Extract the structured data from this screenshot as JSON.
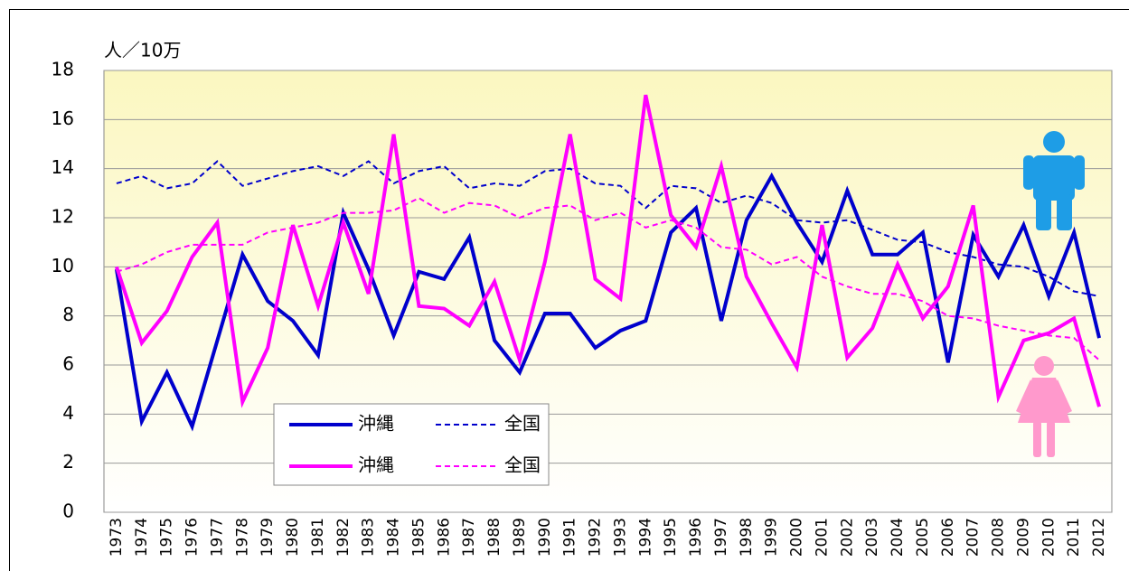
{
  "chart_data": {
    "type": "line",
    "y_label": "人／10万",
    "categories": [
      "1973",
      "1974",
      "1975",
      "1976",
      "1977",
      "1978",
      "1979",
      "1980",
      "1981",
      "1982",
      "1983",
      "1984",
      "1985",
      "1986",
      "1987",
      "1988",
      "1989",
      "1990",
      "1991",
      "1992",
      "1993",
      "1994",
      "1995",
      "1996",
      "1997",
      "1998",
      "1999",
      "2000",
      "2001",
      "2002",
      "2003",
      "2004",
      "2005",
      "2006",
      "2007",
      "2008",
      "2009",
      "2010",
      "2011",
      "2012"
    ],
    "series": [
      {
        "name": "沖縄",
        "color": "#0000cc",
        "style": "solid",
        "values": [
          9.9,
          3.7,
          5.7,
          3.5,
          7.0,
          10.5,
          8.6,
          7.8,
          6.4,
          12.2,
          9.9,
          7.2,
          9.8,
          9.5,
          11.2,
          7.0,
          5.7,
          8.1,
          8.1,
          6.7,
          7.4,
          7.8,
          11.4,
          12.4,
          7.8,
          11.9,
          13.7,
          11.8,
          10.2,
          13.1,
          10.5,
          10.5,
          11.4,
          6.1,
          11.3,
          9.6,
          11.7,
          8.8,
          11.4,
          7.1
        ]
      },
      {
        "name": "全国",
        "color": "#0000cc",
        "style": "dashed",
        "values": [
          13.4,
          13.7,
          13.2,
          13.4,
          14.3,
          13.3,
          13.6,
          13.9,
          14.1,
          13.7,
          14.3,
          13.4,
          13.9,
          14.1,
          13.2,
          13.4,
          13.3,
          13.9,
          14.0,
          13.4,
          13.3,
          12.4,
          13.3,
          13.2,
          12.6,
          12.9,
          12.6,
          11.9,
          11.8,
          11.9,
          11.5,
          11.1,
          11.0,
          10.6,
          10.4,
          10.1,
          10.0,
          9.6,
          9.0,
          8.8
        ]
      },
      {
        "name": "沖縄",
        "color": "#ff00ff",
        "style": "solid",
        "values": [
          10.0,
          6.9,
          8.2,
          10.4,
          11.8,
          4.5,
          6.7,
          11.7,
          8.4,
          11.8,
          8.9,
          15.4,
          8.4,
          8.3,
          7.6,
          9.4,
          6.2,
          10.2,
          15.4,
          9.5,
          8.7,
          17.0,
          12.1,
          10.8,
          14.1,
          9.6,
          7.7,
          5.9,
          11.7,
          6.3,
          7.5,
          10.1,
          7.9,
          9.2,
          12.5,
          4.7,
          7.0,
          7.3,
          7.9,
          4.3
        ]
      },
      {
        "name": "全国",
        "color": "#ff00ff",
        "style": "dashed",
        "values": [
          9.8,
          10.1,
          10.6,
          10.9,
          10.9,
          10.9,
          11.4,
          11.6,
          11.8,
          12.2,
          12.2,
          12.3,
          12.8,
          12.2,
          12.6,
          12.5,
          12.0,
          12.4,
          12.5,
          11.9,
          12.2,
          11.6,
          11.9,
          11.6,
          10.8,
          10.7,
          10.1,
          10.4,
          9.6,
          9.2,
          8.9,
          8.9,
          8.6,
          8.0,
          7.9,
          7.6,
          7.4,
          7.2,
          7.1,
          6.2
        ]
      }
    ],
    "ylim": [
      0,
      18
    ],
    "yticks": [
      0,
      2,
      4,
      6,
      8,
      10,
      12,
      14,
      16,
      18
    ],
    "grid": true
  }
}
